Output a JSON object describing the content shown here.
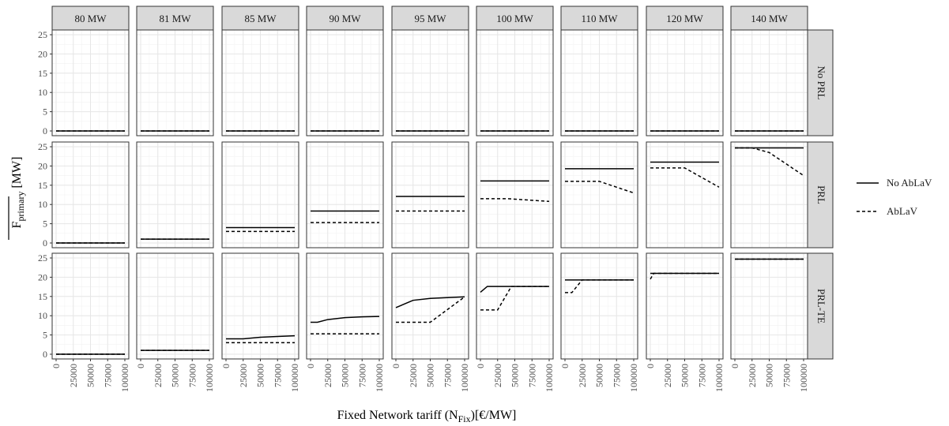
{
  "chart_data": {
    "type": "line",
    "facet_columns": [
      "80 MW",
      "81 MW",
      "85 MW",
      "90 MW",
      "95 MW",
      "100 MW",
      "110 MW",
      "120 MW",
      "140 MW"
    ],
    "facet_rows": [
      "No PRL",
      "PRL",
      "PRL-TE"
    ],
    "xlabel": "Fixed Network tariff (N_Fix)[€/MW]",
    "ylabel": "F_primary [MW]",
    "xlim": [
      0,
      100000
    ],
    "ylim": [
      0,
      25
    ],
    "x_ticks": [
      "0",
      "25000",
      "50000",
      "75000",
      "100000"
    ],
    "y_ticks": [
      "0",
      "5",
      "10",
      "15",
      "20",
      "25"
    ],
    "legend": [
      {
        "name": "No AbLaV",
        "style": "solid"
      },
      {
        "name": "AbLaV",
        "style": "dashed"
      }
    ],
    "legend_position": "right",
    "grid": true,
    "panels": [
      {
        "row": 0,
        "col": 0,
        "series": [
          {
            "name": "No AbLaV",
            "x": [
              0,
              100000
            ],
            "y": [
              0,
              0
            ]
          },
          {
            "name": "AbLaV",
            "x": [
              0,
              100000
            ],
            "y": [
              0,
              0
            ]
          }
        ]
      },
      {
        "row": 0,
        "col": 1,
        "series": [
          {
            "name": "No AbLaV",
            "x": [
              0,
              100000
            ],
            "y": [
              0,
              0
            ]
          },
          {
            "name": "AbLaV",
            "x": [
              0,
              100000
            ],
            "y": [
              0,
              0
            ]
          }
        ]
      },
      {
        "row": 0,
        "col": 2,
        "series": [
          {
            "name": "No AbLaV",
            "x": [
              0,
              100000
            ],
            "y": [
              0,
              0
            ]
          },
          {
            "name": "AbLaV",
            "x": [
              0,
              100000
            ],
            "y": [
              0,
              0
            ]
          }
        ]
      },
      {
        "row": 0,
        "col": 3,
        "series": [
          {
            "name": "No AbLaV",
            "x": [
              0,
              100000
            ],
            "y": [
              0,
              0
            ]
          },
          {
            "name": "AbLaV",
            "x": [
              0,
              100000
            ],
            "y": [
              0,
              0
            ]
          }
        ]
      },
      {
        "row": 0,
        "col": 4,
        "series": [
          {
            "name": "No AbLaV",
            "x": [
              0,
              100000
            ],
            "y": [
              0,
              0
            ]
          },
          {
            "name": "AbLaV",
            "x": [
              0,
              100000
            ],
            "y": [
              0,
              0
            ]
          }
        ]
      },
      {
        "row": 0,
        "col": 5,
        "series": [
          {
            "name": "No AbLaV",
            "x": [
              0,
              100000
            ],
            "y": [
              0,
              0
            ]
          },
          {
            "name": "AbLaV",
            "x": [
              0,
              100000
            ],
            "y": [
              0,
              0
            ]
          }
        ]
      },
      {
        "row": 0,
        "col": 6,
        "series": [
          {
            "name": "No AbLaV",
            "x": [
              0,
              100000
            ],
            "y": [
              0,
              0
            ]
          },
          {
            "name": "AbLaV",
            "x": [
              0,
              100000
            ],
            "y": [
              0,
              0
            ]
          }
        ]
      },
      {
        "row": 0,
        "col": 7,
        "series": [
          {
            "name": "No AbLaV",
            "x": [
              0,
              100000
            ],
            "y": [
              0,
              0
            ]
          },
          {
            "name": "AbLaV",
            "x": [
              0,
              100000
            ],
            "y": [
              0,
              0
            ]
          }
        ]
      },
      {
        "row": 0,
        "col": 8,
        "series": [
          {
            "name": "No AbLaV",
            "x": [
              0,
              100000
            ],
            "y": [
              0,
              0
            ]
          },
          {
            "name": "AbLaV",
            "x": [
              0,
              100000
            ],
            "y": [
              0,
              0
            ]
          }
        ]
      },
      {
        "row": 1,
        "col": 0,
        "series": [
          {
            "name": "No AbLaV",
            "x": [
              0,
              100000
            ],
            "y": [
              0,
              0
            ]
          },
          {
            "name": "AbLaV",
            "x": [
              0,
              100000
            ],
            "y": [
              0,
              0
            ]
          }
        ]
      },
      {
        "row": 1,
        "col": 1,
        "series": [
          {
            "name": "No AbLaV",
            "x": [
              0,
              100000
            ],
            "y": [
              1,
              1
            ]
          },
          {
            "name": "AbLaV",
            "x": [
              0,
              100000
            ],
            "y": [
              1,
              1
            ]
          }
        ]
      },
      {
        "row": 1,
        "col": 2,
        "series": [
          {
            "name": "No AbLaV",
            "x": [
              0,
              100000
            ],
            "y": [
              4,
              4
            ]
          },
          {
            "name": "AbLaV",
            "x": [
              0,
              100000
            ],
            "y": [
              3,
              3
            ]
          }
        ]
      },
      {
        "row": 1,
        "col": 3,
        "series": [
          {
            "name": "No AbLaV",
            "x": [
              0,
              100000
            ],
            "y": [
              8.3,
              8.3
            ]
          },
          {
            "name": "AbLaV",
            "x": [
              0,
              100000
            ],
            "y": [
              5.3,
              5.3
            ]
          }
        ]
      },
      {
        "row": 1,
        "col": 4,
        "series": [
          {
            "name": "No AbLaV",
            "x": [
              0,
              100000
            ],
            "y": [
              12.1,
              12.1
            ]
          },
          {
            "name": "AbLaV",
            "x": [
              0,
              100000
            ],
            "y": [
              8.3,
              8.3
            ]
          }
        ]
      },
      {
        "row": 1,
        "col": 5,
        "series": [
          {
            "name": "No AbLaV",
            "x": [
              0,
              100000
            ],
            "y": [
              16.1,
              16.1
            ]
          },
          {
            "name": "AbLaV",
            "x": [
              0,
              40000,
              100000
            ],
            "y": [
              11.5,
              11.5,
              10.8
            ]
          }
        ]
      },
      {
        "row": 1,
        "col": 6,
        "series": [
          {
            "name": "No AbLaV",
            "x": [
              0,
              100000
            ],
            "y": [
              19.3,
              19.3
            ]
          },
          {
            "name": "AbLaV",
            "x": [
              0,
              50000,
              100000
            ],
            "y": [
              16,
              16,
              13
            ]
          }
        ]
      },
      {
        "row": 1,
        "col": 7,
        "series": [
          {
            "name": "No AbLaV",
            "x": [
              0,
              100000
            ],
            "y": [
              21,
              21
            ]
          },
          {
            "name": "AbLaV",
            "x": [
              0,
              50000,
              100000
            ],
            "y": [
              19.5,
              19.5,
              14.5
            ]
          }
        ]
      },
      {
        "row": 1,
        "col": 8,
        "series": [
          {
            "name": "No AbLaV",
            "x": [
              0,
              100000
            ],
            "y": [
              24.7,
              24.7
            ]
          },
          {
            "name": "AbLaV",
            "x": [
              0,
              25000,
              50000,
              100000
            ],
            "y": [
              24.7,
              24.7,
              23.5,
              17.5
            ]
          }
        ]
      },
      {
        "row": 2,
        "col": 0,
        "series": [
          {
            "name": "No AbLaV",
            "x": [
              0,
              100000
            ],
            "y": [
              0,
              0
            ]
          },
          {
            "name": "AbLaV",
            "x": [
              0,
              100000
            ],
            "y": [
              0,
              0
            ]
          }
        ]
      },
      {
        "row": 2,
        "col": 1,
        "series": [
          {
            "name": "No AbLaV",
            "x": [
              0,
              100000
            ],
            "y": [
              1,
              1
            ]
          },
          {
            "name": "AbLaV",
            "x": [
              0,
              100000
            ],
            "y": [
              1,
              1
            ]
          }
        ]
      },
      {
        "row": 2,
        "col": 2,
        "series": [
          {
            "name": "No AbLaV",
            "x": [
              0,
              25000,
              50000,
              75000,
              100000
            ],
            "y": [
              4,
              4,
              4.4,
              4.6,
              4.8
            ]
          },
          {
            "name": "AbLaV",
            "x": [
              0,
              100000
            ],
            "y": [
              3,
              3
            ]
          }
        ]
      },
      {
        "row": 2,
        "col": 3,
        "series": [
          {
            "name": "No AbLaV",
            "x": [
              0,
              10000,
              25000,
              50000,
              75000,
              100000
            ],
            "y": [
              8.3,
              8.3,
              9,
              9.5,
              9.7,
              9.8
            ]
          },
          {
            "name": "AbLaV",
            "x": [
              0,
              100000
            ],
            "y": [
              5.3,
              5.3
            ]
          }
        ]
      },
      {
        "row": 2,
        "col": 4,
        "series": [
          {
            "name": "No AbLaV",
            "x": [
              0,
              25000,
              50000,
              75000,
              100000
            ],
            "y": [
              12.1,
              14,
              14.5,
              14.7,
              14.9
            ]
          },
          {
            "name": "AbLaV",
            "x": [
              0,
              50000,
              100000
            ],
            "y": [
              8.3,
              8.3,
              14.9
            ]
          }
        ]
      },
      {
        "row": 2,
        "col": 5,
        "series": [
          {
            "name": "No AbLaV",
            "x": [
              0,
              10000,
              100000
            ],
            "y": [
              16.1,
              17.6,
              17.6
            ]
          },
          {
            "name": "AbLaV",
            "x": [
              0,
              25000,
              45000,
              100000
            ],
            "y": [
              11.5,
              11.5,
              17.6,
              17.6
            ]
          }
        ]
      },
      {
        "row": 2,
        "col": 6,
        "series": [
          {
            "name": "No AbLaV",
            "x": [
              0,
              100000
            ],
            "y": [
              19.3,
              19.3
            ]
          },
          {
            "name": "AbLaV",
            "x": [
              0,
              10000,
              25000,
              100000
            ],
            "y": [
              16,
              16,
              19.3,
              19.3
            ]
          }
        ]
      },
      {
        "row": 2,
        "col": 7,
        "series": [
          {
            "name": "No AbLaV",
            "x": [
              0,
              100000
            ],
            "y": [
              21,
              21
            ]
          },
          {
            "name": "AbLaV",
            "x": [
              0,
              5000,
              100000
            ],
            "y": [
              19.5,
              21,
              21
            ]
          }
        ]
      },
      {
        "row": 2,
        "col": 8,
        "series": [
          {
            "name": "No AbLaV",
            "x": [
              0,
              100000
            ],
            "y": [
              24.7,
              24.7
            ]
          },
          {
            "name": "AbLaV",
            "x": [
              0,
              100000
            ],
            "y": [
              24.7,
              24.7
            ]
          }
        ]
      }
    ]
  },
  "labels": {
    "xlabel_main": "Fixed Network tariff (N",
    "xlabel_sub": "Fix",
    "xlabel_tail": ")[€/MW]",
    "ylabel_main": "F",
    "ylabel_sub": "primary",
    "ylabel_tail": " [MW]"
  },
  "colors": {
    "line": "#000000",
    "strip": "#d9d9d9",
    "grid": "#e6e6e6"
  }
}
